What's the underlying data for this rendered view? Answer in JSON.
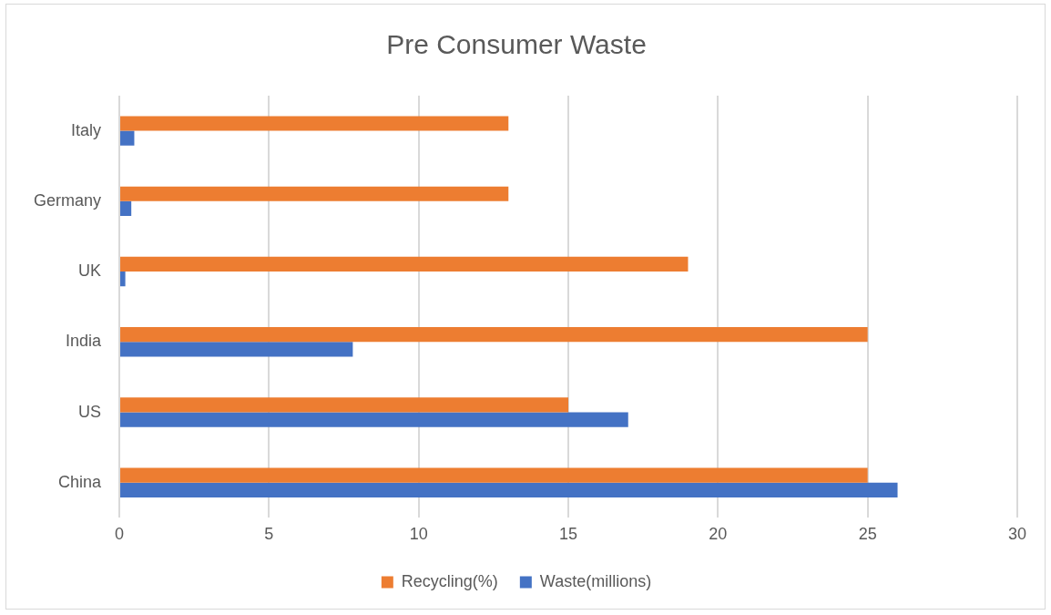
{
  "chart_data": {
    "type": "bar",
    "orientation": "horizontal",
    "title": "Pre Consumer Waste",
    "categories": [
      "Italy",
      "Germany",
      "UK",
      "India",
      "US",
      "China"
    ],
    "series": [
      {
        "name": "Recycling(%)",
        "color": "#ed7d31",
        "values": [
          13,
          13,
          19,
          25,
          15,
          25
        ]
      },
      {
        "name": "Waste(millions)",
        "color": "#4472c4",
        "values": [
          0.5,
          0.4,
          0.2,
          7.8,
          17,
          26
        ]
      }
    ],
    "xlim": [
      0,
      30
    ],
    "xticks": [
      0,
      5,
      10,
      15,
      20,
      25,
      30
    ],
    "grid": "x",
    "legend": "bottom"
  }
}
